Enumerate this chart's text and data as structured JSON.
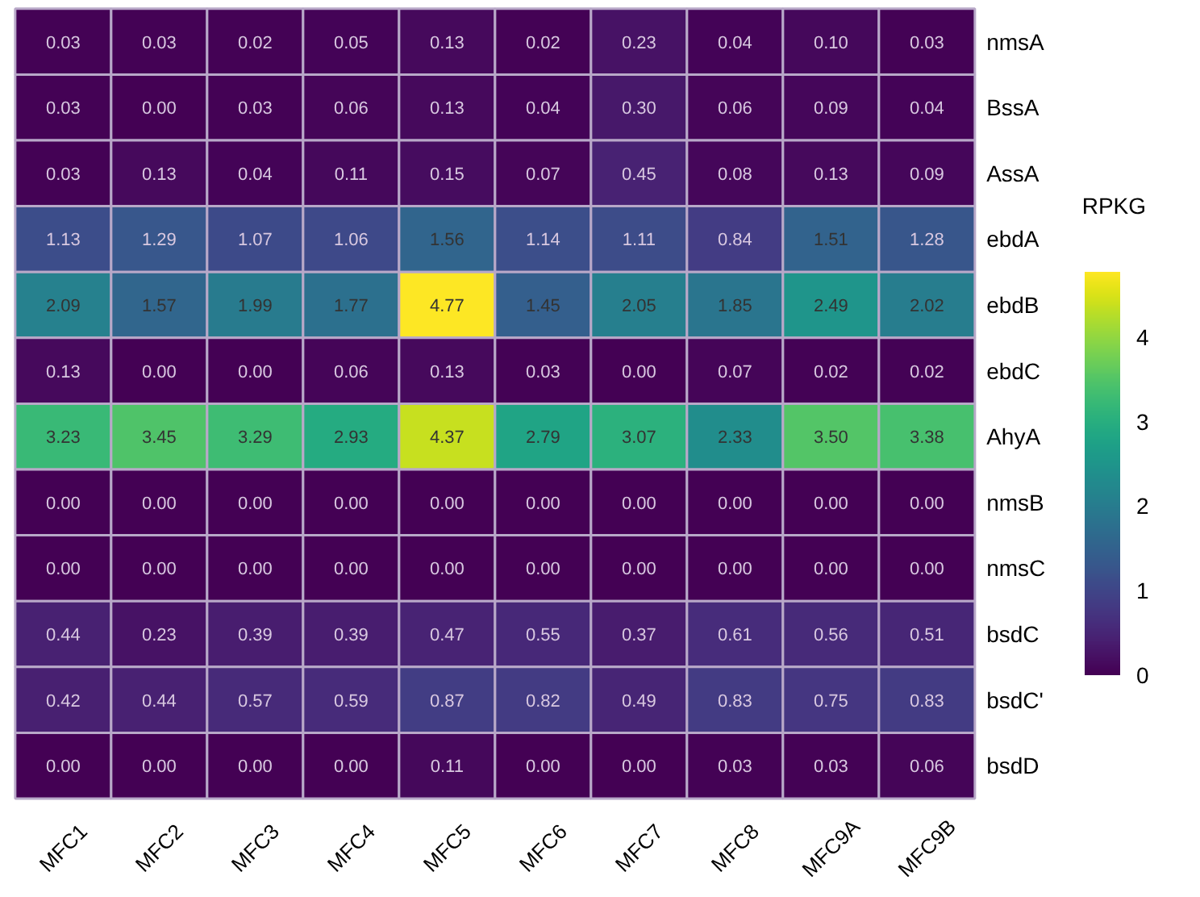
{
  "chart_data": {
    "type": "heatmap",
    "clabel": "RPKG",
    "clim": [
      0,
      4.77
    ],
    "cticks": [
      0,
      1,
      2,
      3,
      4
    ],
    "categories": [
      "MFC1",
      "MFC2",
      "MFC3",
      "MFC4",
      "MFC5",
      "MFC6",
      "MFC7",
      "MFC8",
      "MFC9A",
      "MFC9B"
    ],
    "y_categories": [
      "nmsA",
      "BssA",
      "AssA",
      "ebdA",
      "ebdB",
      "ebdC",
      "AhyA",
      "nmsB",
      "nmsC",
      "bsdC",
      "bsdC'",
      "bsdD"
    ],
    "cells": [
      [
        0.03,
        0.03,
        0.02,
        0.05,
        0.13,
        0.02,
        0.23,
        0.04,
        0.1,
        0.03
      ],
      [
        0.03,
        0.0,
        0.03,
        0.06,
        0.13,
        0.04,
        0.3,
        0.06,
        0.09,
        0.04
      ],
      [
        0.03,
        0.13,
        0.04,
        0.11,
        0.15,
        0.07,
        0.45,
        0.08,
        0.13,
        0.09
      ],
      [
        1.13,
        1.29,
        1.07,
        1.06,
        1.56,
        1.14,
        1.11,
        0.84,
        1.51,
        1.28
      ],
      [
        2.09,
        1.57,
        1.99,
        1.77,
        4.77,
        1.45,
        2.05,
        1.85,
        2.49,
        2.02
      ],
      [
        0.13,
        0.0,
        0.0,
        0.06,
        0.13,
        0.03,
        0.0,
        0.07,
        0.02,
        0.02
      ],
      [
        3.23,
        3.45,
        3.29,
        2.93,
        4.37,
        2.79,
        3.07,
        2.33,
        3.5,
        3.38
      ],
      [
        0.0,
        0.0,
        0.0,
        0.0,
        0.0,
        0.0,
        0.0,
        0.0,
        0.0,
        0.0
      ],
      [
        0.0,
        0.0,
        0.0,
        0.0,
        0.0,
        0.0,
        0.0,
        0.0,
        0.0,
        0.0
      ],
      [
        0.44,
        0.23,
        0.39,
        0.39,
        0.47,
        0.55,
        0.37,
        0.61,
        0.56,
        0.51
      ],
      [
        0.42,
        0.44,
        0.57,
        0.59,
        0.87,
        0.82,
        0.49,
        0.83,
        0.75,
        0.83
      ],
      [
        0.0,
        0.0,
        0.0,
        0.0,
        0.11,
        0.0,
        0.0,
        0.03,
        0.03,
        0.06
      ]
    ],
    "cell_labels": [
      [
        "0.03",
        "0.03",
        "0.02",
        "0.05",
        "0.13",
        "0.02",
        "0.23",
        "0.04",
        "0.10",
        "0.03"
      ],
      [
        "0.03",
        "0.00",
        "0.03",
        "0.06",
        "0.13",
        "0.04",
        "0.30",
        "0.06",
        "0.09",
        "0.04"
      ],
      [
        "0.03",
        "0.13",
        "0.04",
        "0.11",
        "0.15",
        "0.07",
        "0.45",
        "0.08",
        "0.13",
        "0.09"
      ],
      [
        "1.13",
        "1.29",
        "1.07",
        "1.06",
        "1.56",
        "1.14",
        "1.11",
        "0.84",
        "1.51",
        "1.28"
      ],
      [
        "2.09",
        "1.57",
        "1.99",
        "1.77",
        "4.77",
        "1.45",
        "2.05",
        "1.85",
        "2.49",
        "2.02"
      ],
      [
        "0.13",
        "0.00",
        "0.00",
        "0.06",
        "0.13",
        "0.03",
        "0.00",
        "0.07",
        "0.02",
        "0.02"
      ],
      [
        "3.23",
        "3.45",
        "3.29",
        "2.93",
        "4.37",
        "2.79",
        "3.07",
        "2.33",
        "3.50",
        "3.38"
      ],
      [
        "0.00",
        "0.00",
        "0.00",
        "0.00",
        "0.00",
        "0.00",
        "0.00",
        "0.00",
        "0.00",
        "0.00"
      ],
      [
        "0.00",
        "0.00",
        "0.00",
        "0.00",
        "0.00",
        "0.00",
        "0.00",
        "0.00",
        "0.00",
        "0.00"
      ],
      [
        "0.44",
        "0.23",
        "0.39",
        "0.39",
        "0.47",
        "0.55",
        "0.37",
        "0.61",
        "0.56",
        "0.51"
      ],
      [
        "0.42",
        "0.44",
        "0.57",
        "0.59",
        "0.87",
        "0.82",
        "0.49",
        "0.83",
        "0.75",
        "0.83"
      ],
      [
        "0.00",
        "0.00",
        "0.00",
        "0.00",
        "0.11",
        "0.00",
        "0.00",
        "0.03",
        "0.03",
        "0.06"
      ]
    ]
  }
}
